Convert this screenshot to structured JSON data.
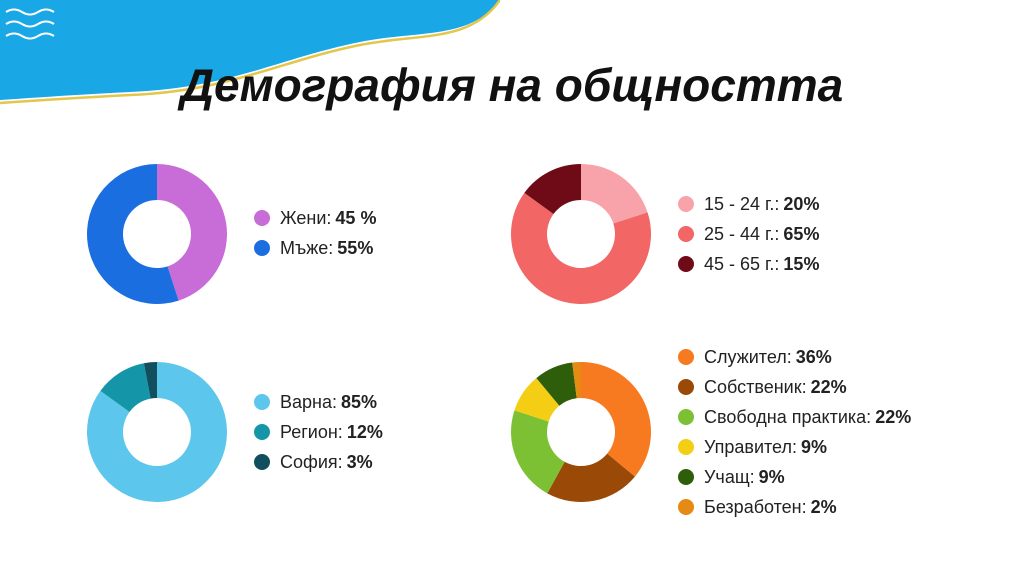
{
  "title": "Демография на общността",
  "colors": {
    "wave": "#1aa7e6",
    "wave_line": "#e3c64a"
  },
  "chart_data": [
    {
      "type": "pie",
      "categories": [
        "Жени",
        "Мъже"
      ],
      "values": [
        45,
        55
      ],
      "labels": [
        "Жени:",
        "Мъже:"
      ],
      "value_labels": [
        "45 %",
        "55%"
      ],
      "colors": [
        "#c86dd7",
        "#1b6ee0"
      ]
    },
    {
      "type": "pie",
      "categories": [
        "15 - 24 г.",
        "25 - 44 г.",
        "45 - 65 г."
      ],
      "values": [
        20,
        65,
        15
      ],
      "labels": [
        "15 - 24 г.:",
        "25 - 44 г.:",
        "45 - 65 г.:"
      ],
      "value_labels": [
        "20%",
        "65%",
        "15%"
      ],
      "colors": [
        "#f8a3aa",
        "#f26666",
        "#6e0b17"
      ]
    },
    {
      "type": "pie",
      "categories": [
        "Варна",
        "Регион",
        "София"
      ],
      "values": [
        85,
        12,
        3
      ],
      "labels": [
        "Варна:",
        "Регион:",
        "София:"
      ],
      "value_labels": [
        "85%",
        "12%",
        "3%"
      ],
      "colors": [
        "#5cc6ec",
        "#1596a8",
        "#114f5e"
      ]
    },
    {
      "type": "pie",
      "categories": [
        "Служител",
        "Собственик",
        "Свободна практика",
        "Управител",
        "Учащ",
        "Безработен"
      ],
      "values": [
        36,
        22,
        22,
        9,
        9,
        2
      ],
      "labels": [
        "Служител:",
        "Собственик:",
        "Свободна практика:",
        "Управител:",
        "Учащ:",
        "Безработен:"
      ],
      "value_labels": [
        "36%",
        "22%",
        "22%",
        "9%",
        "9%",
        "2%"
      ],
      "colors": [
        "#f77a20",
        "#9a4a06",
        "#7cc034",
        "#f4ce14",
        "#2f5e0b",
        "#e58a12"
      ]
    }
  ]
}
